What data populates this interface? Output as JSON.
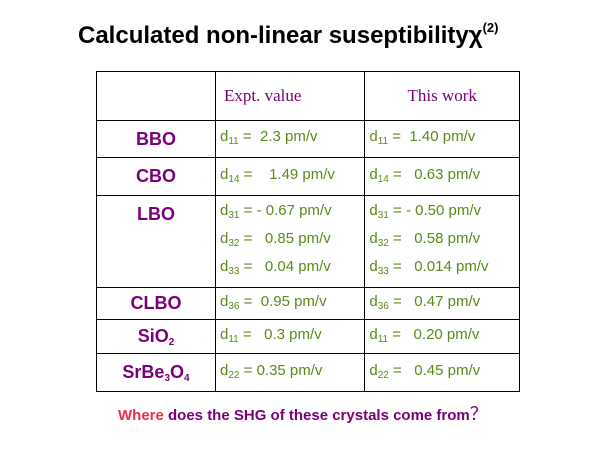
{
  "title": {
    "text": "Calculated  non-linear  suseptibility",
    "chi": "χ",
    "superscript": "(2)"
  },
  "table": {
    "headers": [
      "Expt. value",
      "This work"
    ],
    "rows": [
      {
        "crystal": "BBO",
        "expt": [
          {
            "d": "d",
            "sub": "11",
            "value": " =  2.3 pm/v"
          }
        ],
        "work": [
          {
            "d": "d",
            "sub": "11",
            "value": " =  1.40 pm/v"
          }
        ]
      },
      {
        "crystal": "CBO",
        "expt": [
          {
            "d": "d",
            "sub": "14",
            "value": " =    1.49 pm/v"
          }
        ],
        "work": [
          {
            "d": "d",
            "sub": "14",
            "value": " =   0.63 pm/v"
          }
        ]
      },
      {
        "crystal": "LBO",
        "expt": [
          {
            "d": "d",
            "sub": "31",
            "value": " = - 0.67 pm/v"
          },
          {
            "d": "d",
            "sub": "32",
            "value": " =   0.85 pm/v"
          },
          {
            "d": "d",
            "sub": "33",
            "value": " =   0.04 pm/v"
          }
        ],
        "work": [
          {
            "d": "d",
            "sub": "31",
            "value": " = - 0.50 pm/v"
          },
          {
            "d": "d",
            "sub": "32",
            "value": " =   0.58 pm/v"
          },
          {
            "d": "d",
            "sub": "33",
            "value": " =   0.014 pm/v"
          }
        ]
      },
      {
        "crystal": "CLBO",
        "expt": [
          {
            "d": "d",
            "sub": "36",
            "value": " =  0.95 pm/v"
          }
        ],
        "work": [
          {
            "d": "d",
            "sub": "36",
            "value": " =   0.47 pm/v"
          }
        ]
      },
      {
        "crystal": "SiO₂",
        "crystal_parts": {
          "main": "SiO",
          "sub": "2"
        },
        "expt": [
          {
            "d": "d",
            "sub": "11",
            "value": " =   0.3 pm/v"
          }
        ],
        "work": [
          {
            "d": "d",
            "sub": "11",
            "value": " =   0.20 pm/v"
          }
        ]
      },
      {
        "crystal": "SrBe₃O₄",
        "crystal_parts": {
          "a": "SrBe",
          "sub1": "3",
          "b": "O",
          "sub2": "4"
        },
        "expt": [
          {
            "d": "d",
            "sub": "22",
            "value": " = 0.35 pm/v"
          }
        ],
        "work": [
          {
            "d": "d",
            "sub": "22",
            "value": " =   0.45 pm/v"
          }
        ]
      }
    ]
  },
  "question": {
    "where": "Where",
    "rest": " does the SHG of these crystals come from",
    "qmark": "？"
  },
  "colors": {
    "crystal": "#7a007a",
    "value": "#5a8a1a",
    "header": "#7a007a",
    "where": "#e8324a",
    "title": "#000000"
  }
}
